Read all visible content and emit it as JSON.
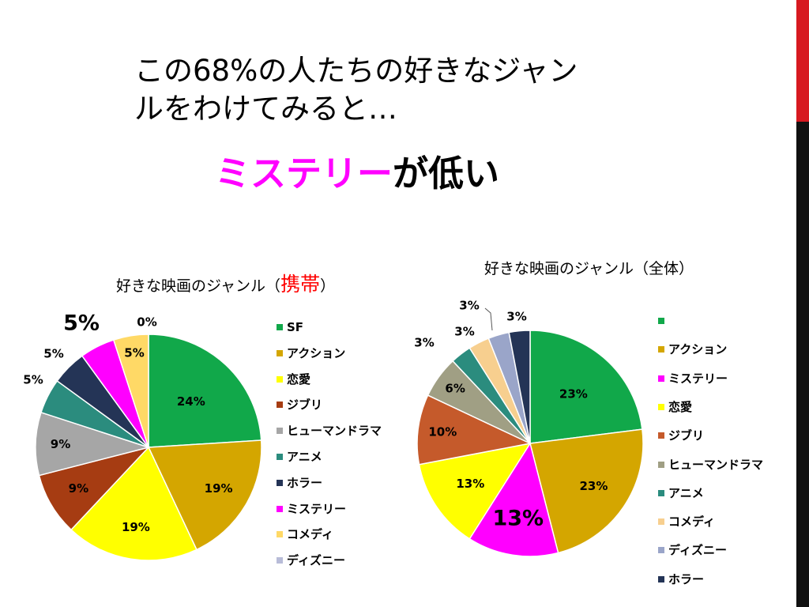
{
  "slide": {
    "title_line1": "この68%の人たちの好きなジャン",
    "title_line2": "ルをわけてみると…",
    "subtitle_highlight": "ミステリー",
    "subtitle_rest": "が低い",
    "highlight_color": "#ff00ff",
    "accent_red": "#d71920"
  },
  "charts": {
    "left": {
      "title_prefix": "好きな映画のジャンル（",
      "title_highlight": "携帯",
      "title_suffix": "）"
    },
    "right": {
      "title": "好きな映画のジャンル（全体）"
    }
  },
  "chart_data": [
    {
      "type": "pie",
      "title": "好きな映画のジャンル（携帯）",
      "categories": [
        "SF",
        "アクション",
        "恋愛",
        "ジブリ",
        "ヒューマンドラマ",
        "アニメ",
        "ホラー",
        "ミステリー",
        "コメディ",
        "ディズニー"
      ],
      "values": [
        24,
        19,
        19,
        9,
        9,
        5,
        5,
        5,
        5,
        0
      ],
      "labels": [
        "24%",
        "19%",
        "19%",
        "9%",
        "9%",
        "5%",
        "5%",
        "5%",
        "5%",
        "0%"
      ],
      "colors": [
        "#11a84a",
        "#d4a600",
        "#ffff00",
        "#a63c12",
        "#a6a6a6",
        "#2b8c7e",
        "#243456",
        "#ff00ff",
        "#ffd966",
        "#b8bcd8"
      ],
      "legend_position": "right"
    },
    {
      "type": "pie",
      "title": "好きな映画のジャンル（全体）",
      "categories": [
        "",
        "アクション",
        "ミステリー",
        "恋愛",
        "ジブリ",
        "ヒューマンドラマ",
        "アニメ",
        "コメディ",
        "ディズニー",
        "ホラー"
      ],
      "values": [
        23,
        23,
        13,
        13,
        10,
        6,
        3,
        3,
        3,
        3
      ],
      "labels": [
        "23%",
        "23%",
        "13%",
        "13%",
        "10%",
        "6%",
        "3%",
        "3%",
        "3%",
        "3%"
      ],
      "colors": [
        "#11a84a",
        "#d4a600",
        "#ff00ff",
        "#ffff00",
        "#c55a2b",
        "#a09f84",
        "#2b8c7e",
        "#f7cf8f",
        "#9aa5c9",
        "#243456"
      ],
      "legend_position": "right"
    }
  ]
}
